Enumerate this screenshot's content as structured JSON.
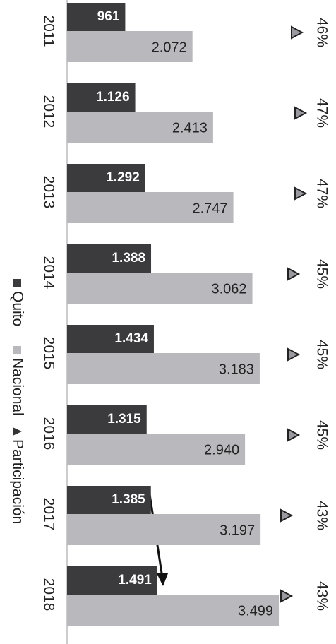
{
  "chart_data": {
    "type": "bar",
    "categories": [
      "2011",
      "2012",
      "2013",
      "2014",
      "2015",
      "2016",
      "2017",
      "2018"
    ],
    "series": [
      {
        "name": "Quito",
        "color": "#3b3b3d",
        "values": [
          961,
          1126,
          1292,
          1388,
          1434,
          1315,
          1385,
          1491
        ],
        "value_labels": [
          "961",
          "1.126",
          "1.292",
          "1.388",
          "1.434",
          "1.315",
          "1.385",
          "1.491"
        ]
      },
      {
        "name": "Nacional",
        "color": "#b9b8bd",
        "values": [
          2072,
          2413,
          2747,
          3062,
          3183,
          2940,
          3197,
          3499
        ],
        "value_labels": [
          "2.072",
          "2.413",
          "2.747",
          "3.062",
          "3.183",
          "2.940",
          "3.197",
          "3.499"
        ]
      },
      {
        "name": "Participación",
        "color": "#9a99a0",
        "axis": "y2",
        "values": [
          46,
          47,
          47,
          45,
          45,
          45,
          43,
          43
        ],
        "value_labels": [
          "46%",
          "47%",
          "47%",
          "45%",
          "45%",
          "45%",
          "43%",
          "43%"
        ]
      }
    ],
    "xlim": [
      0,
      4000
    ],
    "y2lim": [
      30,
      50
    ],
    "legend": "left"
  }
}
